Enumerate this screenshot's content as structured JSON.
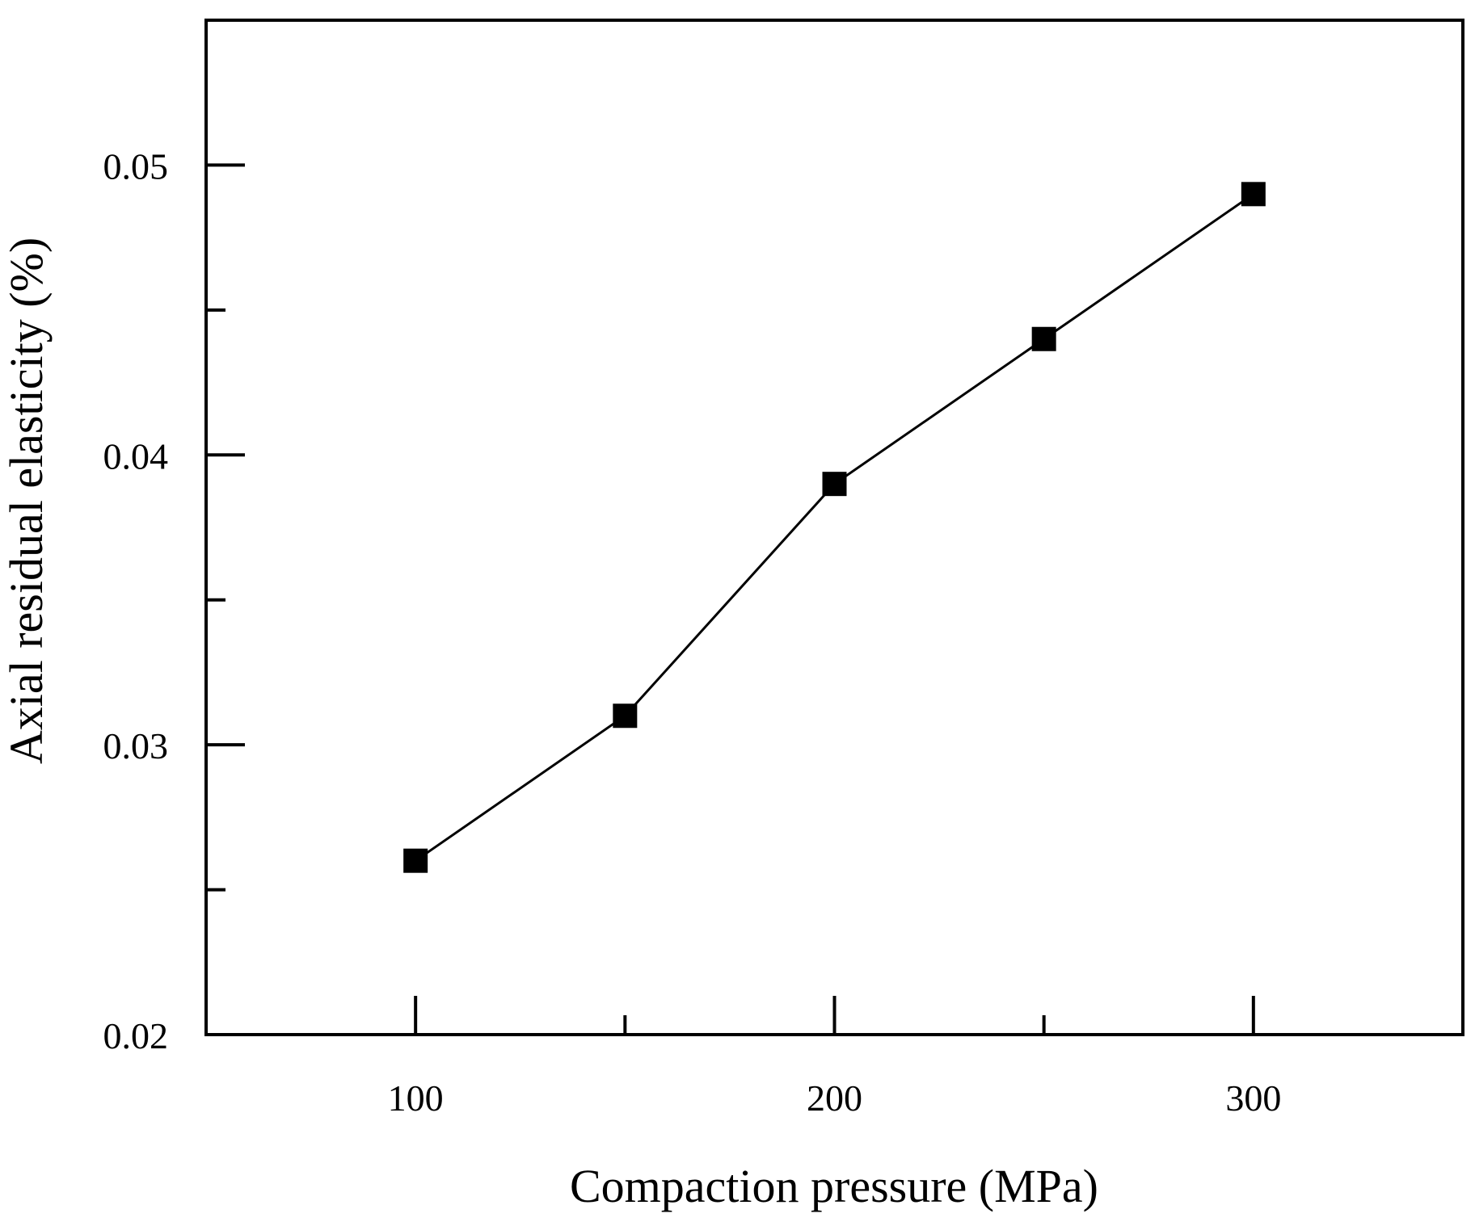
{
  "chart_data": {
    "type": "line",
    "title": "",
    "xlabel": "Compaction pressure (MPa)",
    "ylabel": "Axial residual elasticity (%)",
    "xlim": [
      50,
      350
    ],
    "ylim": [
      0.02,
      0.055
    ],
    "x_major_ticks": [
      100,
      200,
      300
    ],
    "x_minor_ticks": [
      150,
      250
    ],
    "y_major_ticks": [
      0.02,
      0.03,
      0.04,
      0.05
    ],
    "y_minor_ticks": [
      0.025,
      0.035,
      0.045
    ],
    "x_tick_labels": [
      "100",
      "200",
      "300"
    ],
    "y_tick_labels": [
      "0.02",
      "0.03",
      "0.04",
      "0.05"
    ],
    "grid": false,
    "legend": "none",
    "series": [
      {
        "name": "Axial residual elasticity",
        "marker": "square",
        "color": "#000000",
        "x": [
          100,
          150,
          200,
          250,
          300
        ],
        "values": [
          0.026,
          0.031,
          0.039,
          0.044,
          0.049
        ]
      }
    ]
  }
}
